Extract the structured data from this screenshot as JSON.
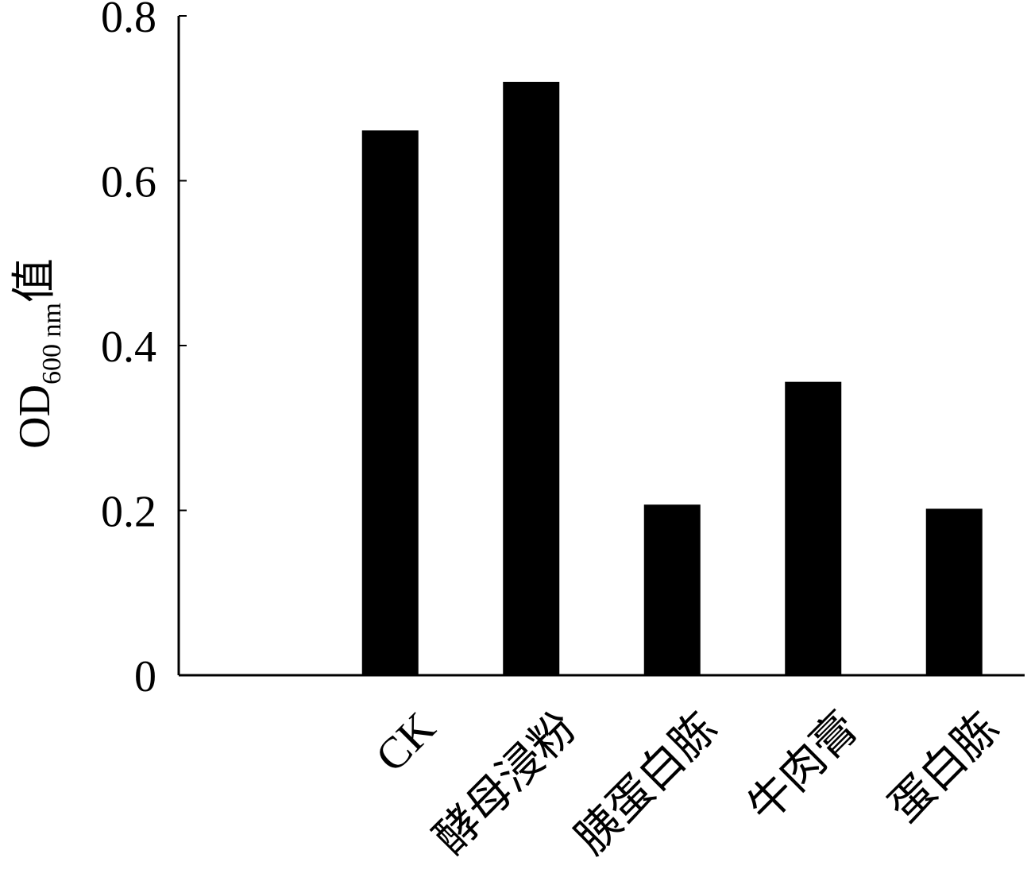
{
  "chart_data": {
    "type": "bar",
    "y_label": "OD",
    "y_label_sub": "600 nm",
    "y_label_suffix": "值",
    "categories": [
      null,
      "CK",
      "酵母浸粉",
      "胰蛋白胨",
      "牛肉膏",
      "蛋白胨"
    ],
    "values": [
      null,
      0.661,
      0.72,
      0.207,
      0.356,
      0.202
    ],
    "color": "#000000",
    "ylim": [
      0,
      0.8
    ],
    "yticks": [
      0,
      0.2,
      0.4,
      0.6,
      0.8
    ],
    "grid": false
  }
}
